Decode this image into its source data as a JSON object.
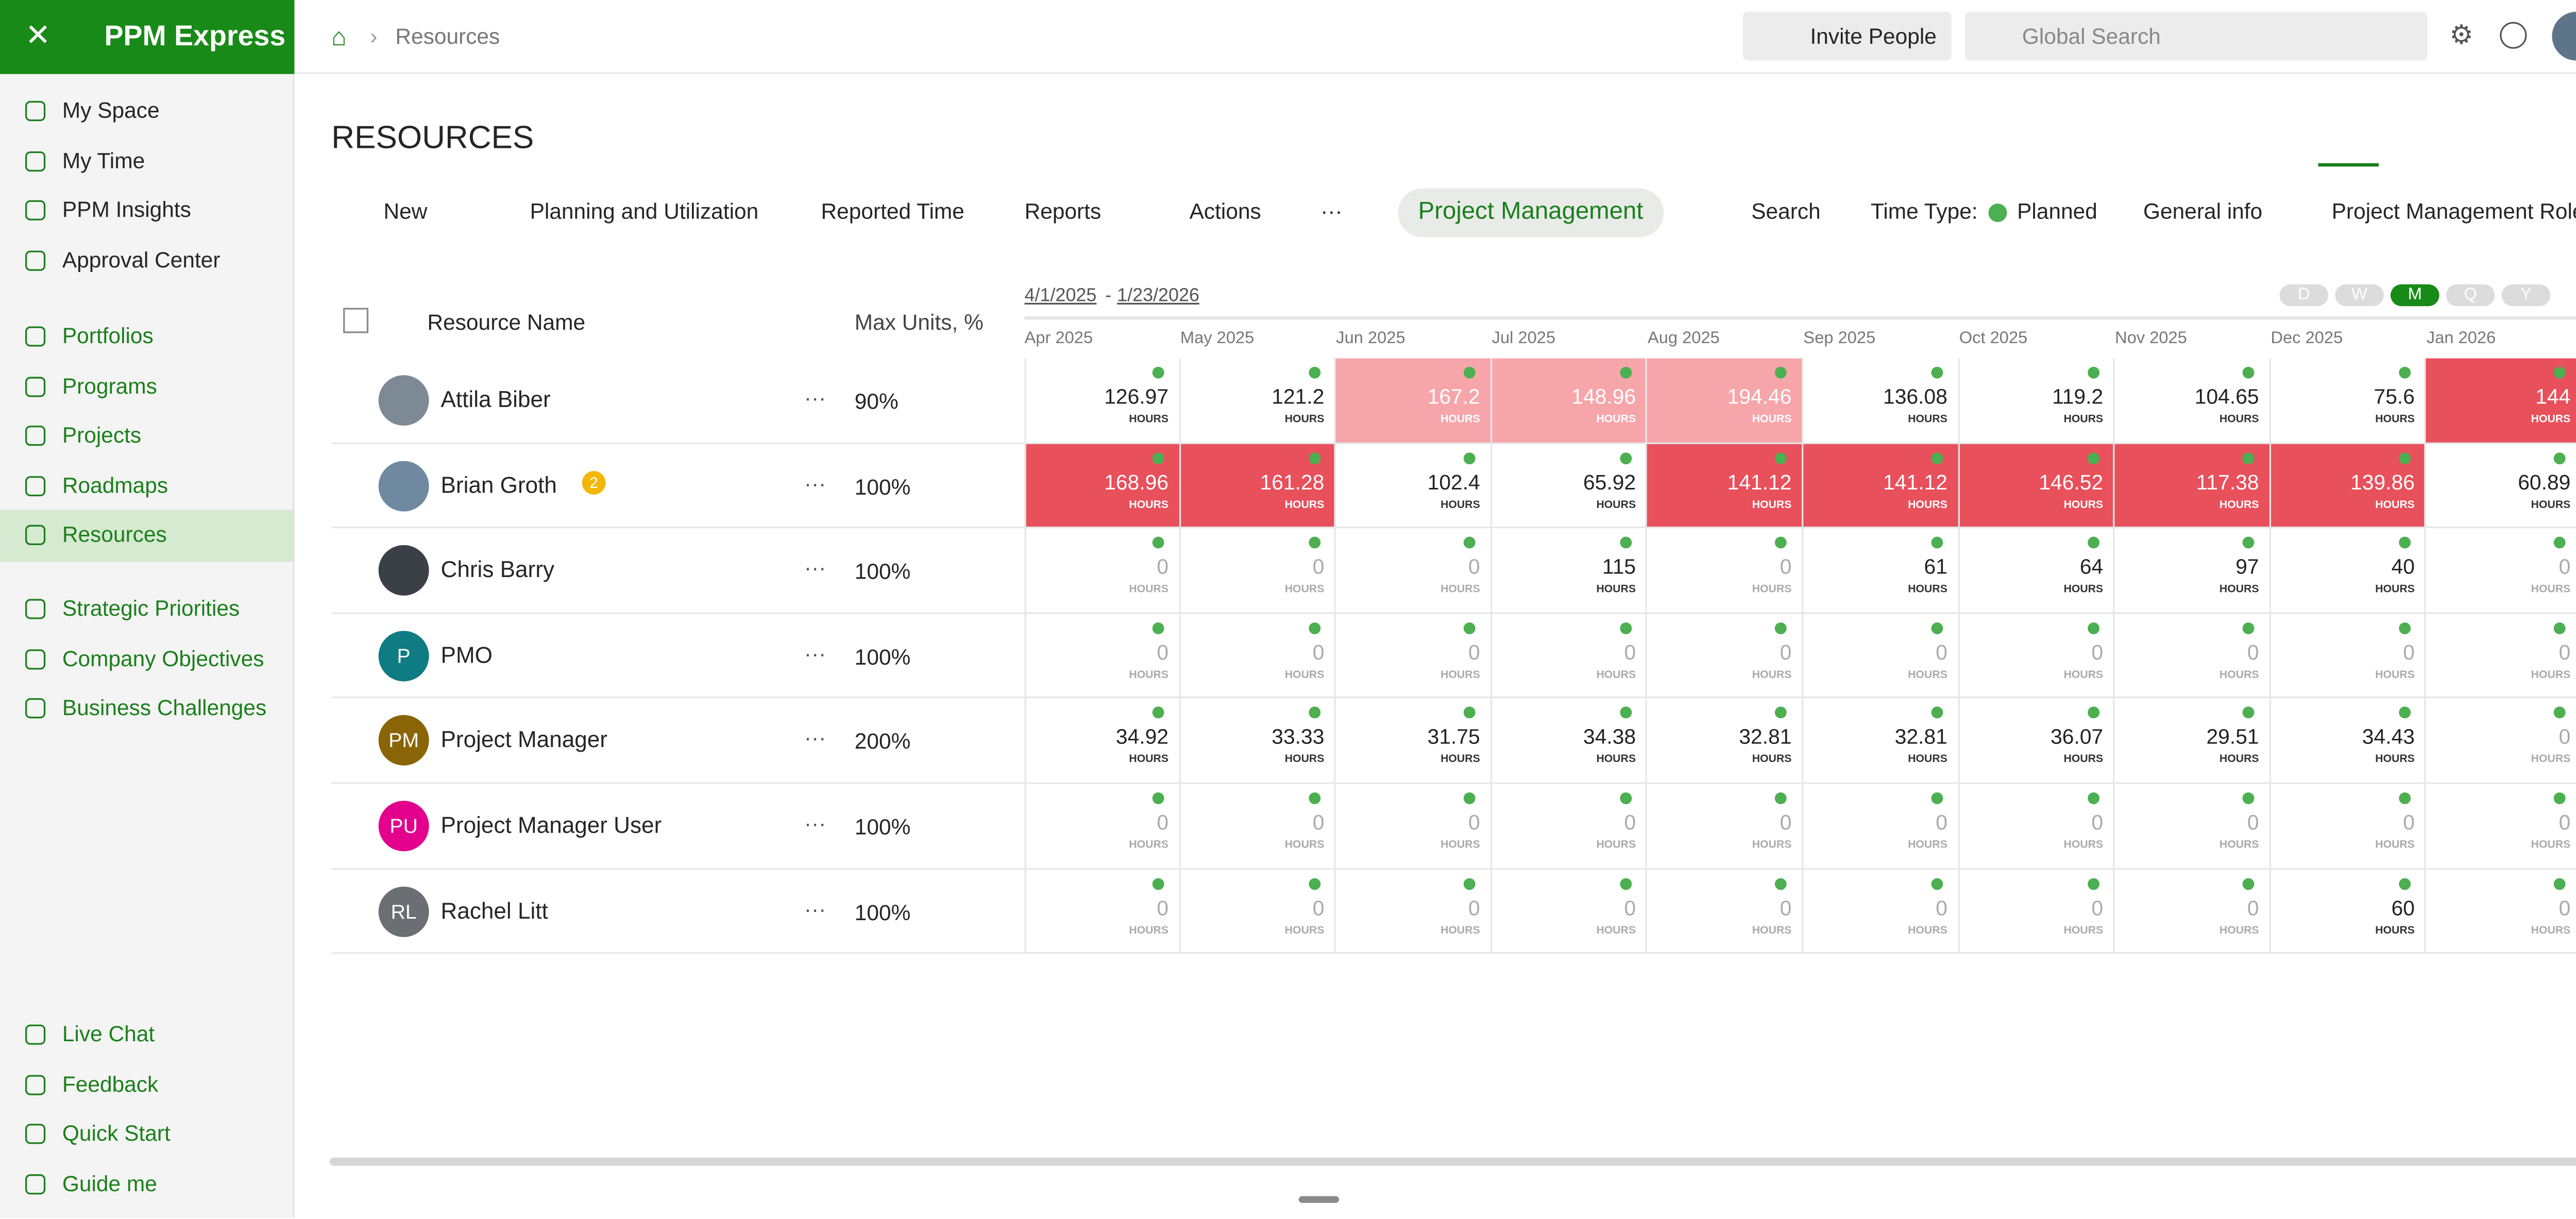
{
  "app": {
    "name": "PPM Express"
  },
  "sidebar": {
    "top": [
      "My Space",
      "My Time",
      "PPM Insights",
      "Approval Center"
    ],
    "main": [
      "Portfolios",
      "Programs",
      "Projects",
      "Roadmaps",
      "Resources"
    ],
    "active": "Resources",
    "strategy": [
      "Strategic Priorities",
      "Company Objectives",
      "Business Challenges"
    ],
    "bottom": [
      "Live Chat",
      "Feedback",
      "Quick Start",
      "Guide me"
    ]
  },
  "header": {
    "breadcrumb": "Resources",
    "invite": "Invite People",
    "search": "Global Search"
  },
  "page": {
    "title": "RESOURCES"
  },
  "toolbar": {
    "new": "New",
    "planning": "Planning and Utilization",
    "reported": "Reported Time",
    "reports": "Reports",
    "actions": "Actions",
    "more": "···",
    "view": "Project Management",
    "search": "Search",
    "time_type_label": "Time Type:",
    "time_type": "Planned",
    "general": "General info",
    "filter": "Project Management Role"
  },
  "grid": {
    "date_from": "4/1/2025",
    "date_sep": "-",
    "date_to": "1/23/2026",
    "scales": [
      "D",
      "W",
      "M",
      "Q",
      "Y"
    ],
    "active_scale": "M",
    "columns": {
      "name": "Resource Name",
      "max_units": "Max Units, %"
    },
    "months": [
      "Apr 2025",
      "May 2025",
      "Jun 2025",
      "Jul 2025",
      "Aug 2025",
      "Sep 2025",
      "Oct 2025",
      "Nov 2025",
      "Dec 2025",
      "Jan 2026"
    ],
    "unit": "HOURS",
    "row_menu": "···",
    "rows": [
      {
        "name": "Attila Biber",
        "avatar": "#7d8a96",
        "max_units": "90%",
        "values": [
          "126.97",
          "121.2",
          "167.2",
          "148.96",
          "194.46",
          "136.08",
          "119.2",
          "104.65",
          "75.6",
          "144"
        ],
        "fills": [
          "#ffffff",
          "#ffffff",
          "#f6a6aa",
          "#f6a6aa",
          "#f6a6aa",
          "#ffffff",
          "#ffffff",
          "#ffffff",
          "#ffffff",
          "#e8505b"
        ]
      },
      {
        "name": "Brian Groth",
        "avatar": "#6f8aa0",
        "badge": "2",
        "max_units": "100%",
        "values": [
          "168.96",
          "161.28",
          "102.4",
          "65.92",
          "141.12",
          "141.12",
          "146.52",
          "117.38",
          "139.86",
          "60.89"
        ],
        "fills": [
          "#e8505b",
          "#e8505b",
          "#ffffff",
          "#ffffff",
          "#e8505b",
          "#e8505b",
          "#e8505b",
          "#e8505b",
          "#e8505b",
          "#ffffff"
        ]
      },
      {
        "name": "Chris Barry",
        "avatar": "#3b3f46",
        "max_units": "100%",
        "values": [
          "0",
          "0",
          "0",
          "115",
          "0",
          "61",
          "64",
          "97",
          "40",
          "0"
        ],
        "fills": [
          "#ffffff",
          "#ffffff",
          "#ffffff",
          "#ffffff",
          "#ffffff",
          "#ffffff",
          "#ffffff",
          "#ffffff",
          "#ffffff",
          "#ffffff"
        ]
      },
      {
        "name": "PMO",
        "initials": "P",
        "avatar": "#0f7b82",
        "max_units": "100%",
        "values": [
          "0",
          "0",
          "0",
          "0",
          "0",
          "0",
          "0",
          "0",
          "0",
          "0"
        ],
        "fills": [
          "#ffffff",
          "#ffffff",
          "#ffffff",
          "#ffffff",
          "#ffffff",
          "#ffffff",
          "#ffffff",
          "#ffffff",
          "#ffffff",
          "#ffffff"
        ]
      },
      {
        "name": "Project Manager",
        "initials": "PM",
        "avatar": "#8a6508",
        "max_units": "200%",
        "values": [
          "34.92",
          "33.33",
          "31.75",
          "34.38",
          "32.81",
          "32.81",
          "36.07",
          "29.51",
          "34.43",
          "0"
        ],
        "fills": [
          "#ffffff",
          "#ffffff",
          "#ffffff",
          "#ffffff",
          "#ffffff",
          "#ffffff",
          "#ffffff",
          "#ffffff",
          "#ffffff",
          "#ffffff"
        ]
      },
      {
        "name": "Project Manager User",
        "initials": "PU",
        "avatar": "#e3008c",
        "max_units": "100%",
        "values": [
          "0",
          "0",
          "0",
          "0",
          "0",
          "0",
          "0",
          "0",
          "0",
          "0"
        ],
        "fills": [
          "#ffffff",
          "#ffffff",
          "#ffffff",
          "#ffffff",
          "#ffffff",
          "#ffffff",
          "#ffffff",
          "#ffffff",
          "#ffffff",
          "#ffffff"
        ]
      },
      {
        "name": "Rachel Litt",
        "initials": "RL",
        "avatar": "#6b6f73",
        "max_units": "100%",
        "values": [
          "0",
          "0",
          "0",
          "0",
          "0",
          "0",
          "0",
          "0",
          "60",
          "0"
        ],
        "fills": [
          "#ffffff",
          "#ffffff",
          "#ffffff",
          "#ffffff",
          "#ffffff",
          "#ffffff",
          "#ffffff",
          "#ffffff",
          "#ffffff",
          "#ffffff"
        ]
      }
    ]
  }
}
